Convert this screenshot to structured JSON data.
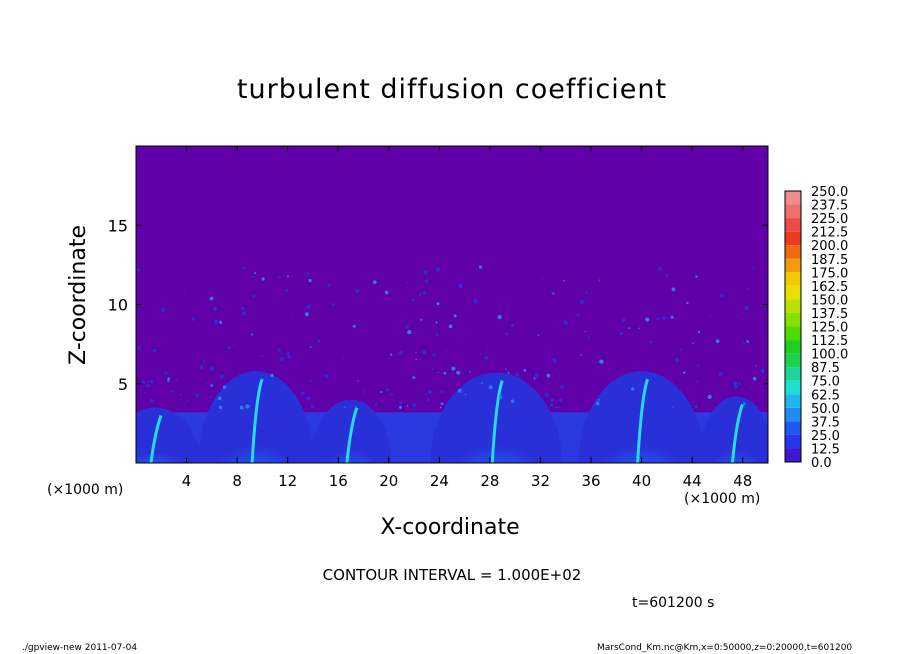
{
  "chart_data": {
    "type": "heatmap",
    "title": "turbulent diffusion coefficient",
    "xlabel": "X-coordinate",
    "ylabel": "Z-coordinate",
    "x_unit": "(×1000 m)",
    "xlim": [
      0,
      50
    ],
    "ylim": [
      0,
      20
    ],
    "x_ticks": [
      4,
      8,
      12,
      16,
      20,
      24,
      28,
      32,
      36,
      40,
      44,
      48
    ],
    "y_ticks": [
      5,
      10,
      15
    ],
    "colorbar": {
      "levels": [
        "250.0",
        "237.5",
        "225.0",
        "212.5",
        "200.0",
        "187.5",
        "175.0",
        "162.5",
        "150.0",
        "137.5",
        "125.0",
        "112.5",
        "100.0",
        "87.5",
        "75.0",
        "62.5",
        "50.0",
        "37.5",
        "25.0",
        "12.5",
        "0.0"
      ],
      "colors": [
        "#f28b8b",
        "#f06e6e",
        "#ee4a4a",
        "#ee3a1e",
        "#f06a10",
        "#f39a10",
        "#f5c800",
        "#e8e000",
        "#b8e200",
        "#86e000",
        "#4cdc00",
        "#20d020",
        "#1ed04a",
        "#1ed49a",
        "#1ee0d0",
        "#1eb8f0",
        "#1e8cf0",
        "#1e5af0",
        "#2a34e8",
        "#3d18d0",
        "#5a00a8"
      ]
    },
    "background_color": "#6000a8",
    "contour_interval": "CONTOUR INTERVAL = 1.000E+02",
    "time": "t=601200 s"
  },
  "footer": {
    "left": "./gpview-new   2011-07-04",
    "right": "MarsCond_Km.nc@Km,x=0:50000,z=0:20000,t=601200"
  }
}
